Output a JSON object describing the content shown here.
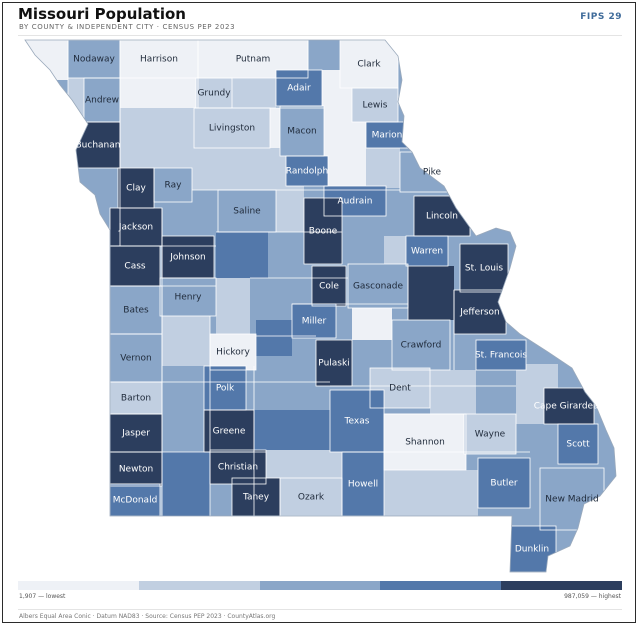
{
  "header": {
    "title": "Missouri Population",
    "subtitle": "BY COUNTY & INDEPENDENT CITY · CENSUS PEP 2023",
    "fips": "FIPS 29"
  },
  "legend": {
    "min_label": "1,907 — lowest",
    "max_label": "987,059 — highest",
    "colors": [
      "#eef1f6",
      "#c1cfe1",
      "#8aa6c8",
      "#5378aa",
      "#2c3e5e"
    ]
  },
  "footer": "Albers Equal Area Conic · Datum NAD83 · Source: Census PEP 2023 · CountyAtlas.org",
  "colors": {
    "state_base": "#8aa6c8",
    "county_border": "#ffffff",
    "frame": "#2b2b2b"
  },
  "counties": [
    {
      "name": "Nodaway",
      "shade": 2
    },
    {
      "name": "Harrison",
      "shade": 0
    },
    {
      "name": "Putnam",
      "shade": 0
    },
    {
      "name": "Clark",
      "shade": 0
    },
    {
      "name": "Grundy",
      "shade": 1
    },
    {
      "name": "Adair",
      "shade": 3
    },
    {
      "name": "Lewis",
      "shade": 1
    },
    {
      "name": "Andrew",
      "shade": 2
    },
    {
      "name": "Livingston",
      "shade": 1
    },
    {
      "name": "Macon",
      "shade": 2
    },
    {
      "name": "Marion",
      "shade": 3
    },
    {
      "name": "Buchanan",
      "shade": 4
    },
    {
      "name": "Clay",
      "shade": 4
    },
    {
      "name": "Ray",
      "shade": 2
    },
    {
      "name": "Randolph",
      "shade": 3
    },
    {
      "name": "Pike",
      "shade": 2
    },
    {
      "name": "Audrain",
      "shade": 3
    },
    {
      "name": "Saline",
      "shade": 2
    },
    {
      "name": "Lincoln",
      "shade": 4
    },
    {
      "name": "Jackson",
      "shade": 4
    },
    {
      "name": "Boone",
      "shade": 4
    },
    {
      "name": "Warren",
      "shade": 3
    },
    {
      "name": "Johnson",
      "shade": 4
    },
    {
      "name": "Cass",
      "shade": 4
    },
    {
      "name": "St. Louis",
      "shade": 4
    },
    {
      "name": "Cole",
      "shade": 4
    },
    {
      "name": "Gasconade",
      "shade": 2
    },
    {
      "name": "Henry",
      "shade": 2
    },
    {
      "name": "Jefferson",
      "shade": 4
    },
    {
      "name": "Bates",
      "shade": 2
    },
    {
      "name": "Miller",
      "shade": 3
    },
    {
      "name": "Crawford",
      "shade": 2
    },
    {
      "name": "Hickory",
      "shade": 0
    },
    {
      "name": "Pulaski",
      "shade": 4
    },
    {
      "name": "Vernon",
      "shade": 2
    },
    {
      "name": "St. Francois",
      "shade": 3
    },
    {
      "name": "Dent",
      "shade": 1
    },
    {
      "name": "Polk",
      "shade": 3
    },
    {
      "name": "Barton",
      "shade": 1
    },
    {
      "name": "Cape Girardeau",
      "shade": 4
    },
    {
      "name": "Texas",
      "shade": 3
    },
    {
      "name": "Jasper",
      "shade": 4
    },
    {
      "name": "Greene",
      "shade": 4
    },
    {
      "name": "Shannon",
      "shade": 0
    },
    {
      "name": "Wayne",
      "shade": 1
    },
    {
      "name": "Scott",
      "shade": 3
    },
    {
      "name": "Christian",
      "shade": 4
    },
    {
      "name": "Newton",
      "shade": 4
    },
    {
      "name": "Howell",
      "shade": 3
    },
    {
      "name": "Butler",
      "shade": 3
    },
    {
      "name": "Taney",
      "shade": 4
    },
    {
      "name": "Ozark",
      "shade": 1
    },
    {
      "name": "McDonald",
      "shade": 3
    },
    {
      "name": "New Madrid",
      "shade": 2
    },
    {
      "name": "Dunklin",
      "shade": 3
    }
  ]
}
